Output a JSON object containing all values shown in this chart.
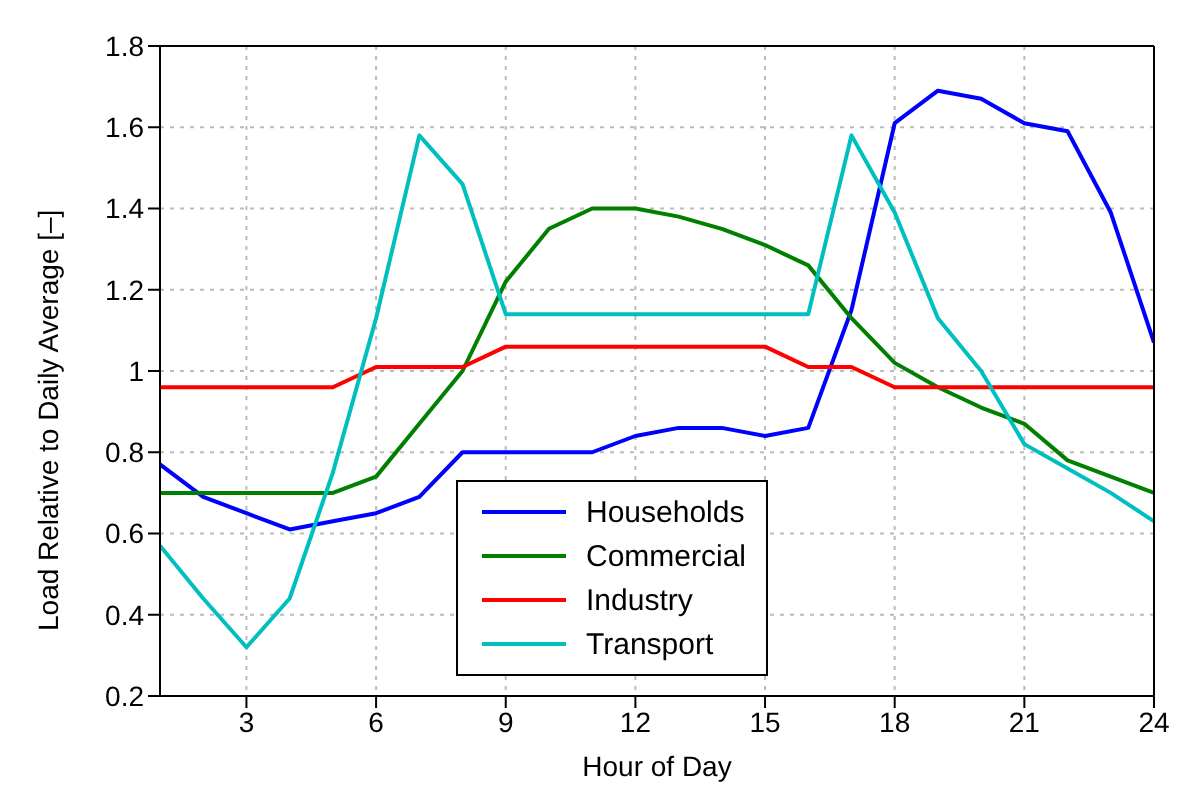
{
  "chart_data": {
    "type": "line",
    "xlabel": "Hour of Day",
    "ylabel": "Load Relative to Daily Average [–]",
    "x": [
      1,
      2,
      3,
      4,
      5,
      6,
      7,
      8,
      9,
      10,
      11,
      12,
      13,
      14,
      15,
      16,
      17,
      18,
      19,
      20,
      21,
      22,
      23,
      24
    ],
    "xlim": [
      1,
      24
    ],
    "xticks": [
      3,
      6,
      9,
      12,
      15,
      18,
      21,
      24
    ],
    "ylim": [
      0.2,
      1.8
    ],
    "yticks": [
      0.2,
      0.4,
      0.6,
      0.8,
      1,
      1.2,
      1.4,
      1.6,
      1.8
    ],
    "grid": true,
    "legend": "bottom",
    "marker": "none",
    "line_style": "solid",
    "series": [
      {
        "name": "Households",
        "color": "#0000ff",
        "values": [
          0.77,
          0.69,
          0.65,
          0.61,
          0.63,
          0.65,
          0.69,
          0.8,
          0.8,
          0.8,
          0.8,
          0.84,
          0.86,
          0.86,
          0.84,
          0.86,
          1.15,
          1.61,
          1.69,
          1.67,
          1.61,
          1.59,
          1.39,
          1.07
        ]
      },
      {
        "name": "Commercial",
        "color": "#007f00",
        "values": [
          0.7,
          0.7,
          0.7,
          0.7,
          0.7,
          0.74,
          0.87,
          1.0,
          1.22,
          1.35,
          1.4,
          1.4,
          1.38,
          1.35,
          1.31,
          1.26,
          1.13,
          1.02,
          0.96,
          0.91,
          0.87,
          0.78,
          0.74,
          0.7
        ]
      },
      {
        "name": "Industry",
        "color": "#ff0000",
        "values": [
          0.96,
          0.96,
          0.96,
          0.96,
          0.96,
          1.01,
          1.01,
          1.01,
          1.06,
          1.06,
          1.06,
          1.06,
          1.06,
          1.06,
          1.06,
          1.01,
          1.01,
          0.96,
          0.96,
          0.96,
          0.96,
          0.96,
          0.96,
          0.96
        ]
      },
      {
        "name": "Transport",
        "color": "#00bfbf",
        "values": [
          0.57,
          0.44,
          0.32,
          0.44,
          0.75,
          1.13,
          1.58,
          1.46,
          1.14,
          1.14,
          1.14,
          1.14,
          1.14,
          1.14,
          1.14,
          1.14,
          1.58,
          1.39,
          1.13,
          1.0,
          0.82,
          0.76,
          0.7,
          0.63
        ]
      }
    ]
  }
}
